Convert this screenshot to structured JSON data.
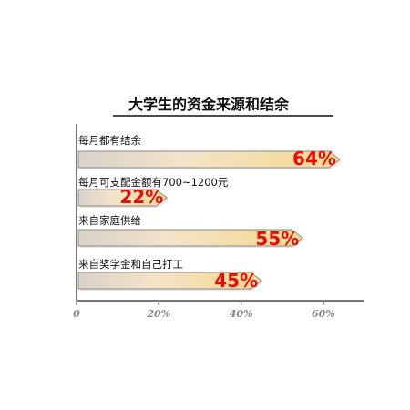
{
  "chart_data": {
    "type": "bar",
    "title": "大学生的资金来源和结余",
    "xlim": [
      0,
      70
    ],
    "categories": [
      "每月都有结余",
      "每月可支配金额有700~1200元",
      "来自家庭供给",
      "来自奖学金和自己打工"
    ],
    "values": [
      64,
      22,
      55,
      45
    ],
    "value_labels": [
      "64%",
      "22%",
      "55%",
      "45%"
    ],
    "x_ticks": [
      0,
      20,
      40,
      60
    ],
    "x_tick_labels": [
      "0",
      "20%",
      "40%",
      "60%"
    ],
    "grid": false,
    "colors": {
      "bar_start": "#d8d2cb",
      "bar_mid": "#f3e3c8",
      "bar_end": "#f6d88f",
      "value_text": "#e01010",
      "axis": "#777777",
      "label_text": "#111111",
      "tick_text": "#888888"
    }
  }
}
